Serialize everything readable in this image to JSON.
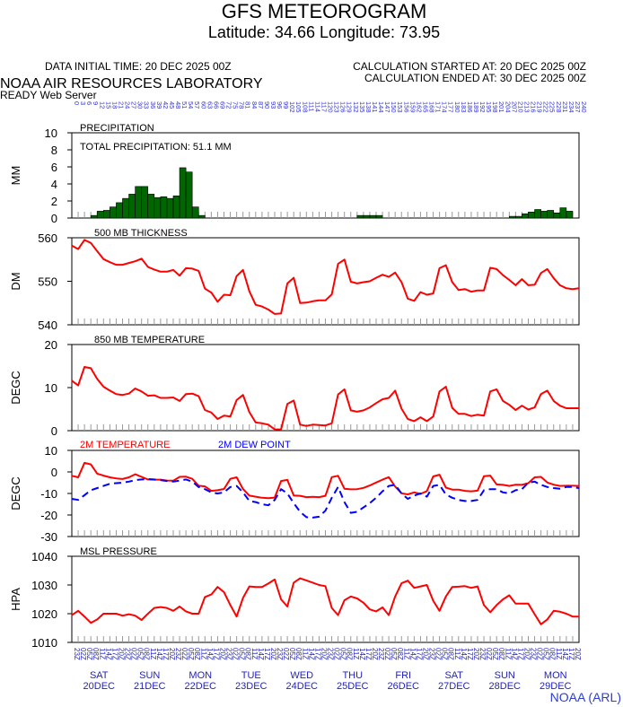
{
  "header": {
    "title": "GFS METEOROGRAM",
    "subtitle": "Latitude: 34.66 Longitude:  73.95",
    "initial_time": "DATA INITIAL TIME: 20 DEC 2025 00Z",
    "calc_started": "CALCULATION STARTED AT: 20 DEC 2025 00Z",
    "calc_ended": "CALCULATION ENDED AT: 30 DEC 2025 00Z",
    "lab": "NOAA AIR RESOURCES LABORATORY",
    "server": "READY Web Server"
  },
  "top_axis": {
    "forecast_hours": [
      0,
      3,
      6,
      9,
      12,
      15,
      18,
      21,
      24,
      27,
      30,
      33,
      36,
      39,
      42,
      45,
      48,
      51,
      54,
      57,
      60,
      63,
      66,
      69,
      72,
      75,
      78,
      81,
      84,
      87,
      90,
      93,
      96,
      99,
      102,
      105,
      108,
      111,
      114,
      117,
      120,
      123,
      126,
      129,
      132,
      135,
      138,
      141,
      144,
      147,
      150,
      153,
      156,
      159,
      162,
      165,
      168,
      171,
      174,
      177,
      180,
      183,
      186,
      189,
      192,
      195,
      198,
      201,
      204,
      207,
      210,
      213,
      216,
      219,
      222,
      225,
      228,
      231,
      234,
      237,
      240
    ],
    "hours_color": "#3333cc"
  },
  "bottom_axis": {
    "time_labels": [
      "23Z",
      "02Z",
      "05Z",
      "08Z",
      "11Z",
      "14Z",
      "17Z",
      "20Z"
    ],
    "days": [
      {
        "dow": "SAT",
        "date": "20DEC"
      },
      {
        "dow": "SUN",
        "date": "21DEC"
      },
      {
        "dow": "MON",
        "date": "22DEC"
      },
      {
        "dow": "TUE",
        "date": "23DEC"
      },
      {
        "dow": "WED",
        "date": "24DEC"
      },
      {
        "dow": "THU",
        "date": "25DEC"
      },
      {
        "dow": "FRI",
        "date": "26DEC"
      },
      {
        "dow": "SAT",
        "date": "27DEC"
      },
      {
        "dow": "SUN",
        "date": "28DEC"
      },
      {
        "dow": "MON",
        "date": "29DEC"
      }
    ],
    "label_color": "#1f1fbf"
  },
  "credit": "NOAA (ARL)",
  "colors": {
    "precip": "#006600",
    "line": "#ff0000",
    "dew": "#0000ff",
    "credit": "#2a3dd6"
  },
  "chart_data": [
    {
      "type": "bar",
      "id": "precipitation",
      "title": "PRECIPITATION",
      "annotation": "TOTAL PRECIPITATION:  51.1 MM",
      "ylabel": "MM",
      "ylim": [
        0,
        10
      ],
      "yticks": [
        0,
        2,
        4,
        6,
        8,
        10
      ],
      "x_hours": [
        0,
        3,
        6,
        9,
        12,
        15,
        18,
        21,
        24,
        27,
        30,
        33,
        36,
        39,
        42,
        45,
        48,
        51,
        54,
        57,
        60,
        63,
        66,
        69,
        72,
        75,
        78,
        81,
        84,
        87,
        90,
        93,
        96,
        99,
        102,
        105,
        108,
        111,
        114,
        117,
        120,
        123,
        126,
        129,
        132,
        135,
        138,
        141,
        144,
        147,
        150,
        153,
        156,
        159,
        162,
        165,
        168,
        171,
        174,
        177,
        180,
        183,
        186,
        189,
        192,
        195,
        198,
        201,
        204,
        207,
        210,
        213,
        216,
        219,
        222,
        225,
        228,
        231,
        234,
        237
      ],
      "values": [
        0,
        0,
        0,
        0.3,
        0.8,
        0.9,
        1.3,
        1.8,
        2.3,
        2.8,
        3.7,
        3.7,
        2.8,
        2.4,
        2.5,
        2.3,
        2.6,
        5.9,
        5.4,
        1.3,
        0.3,
        0,
        0,
        0,
        0,
        0,
        0,
        0,
        0,
        0,
        0,
        0,
        0,
        0,
        0,
        0,
        0,
        0,
        0,
        0,
        0,
        0,
        0,
        0,
        0,
        0.3,
        0.3,
        0.3,
        0.3,
        0,
        0,
        0,
        0,
        0,
        0,
        0,
        0,
        0,
        0,
        0,
        0,
        0,
        0,
        0,
        0,
        0,
        0,
        0,
        0,
        0.2,
        0.2,
        0.5,
        0.7,
        1.0,
        0.8,
        0.9,
        0.6,
        1.2,
        0.8,
        0
      ]
    },
    {
      "type": "line",
      "id": "thickness",
      "title": "500 MB  THICKNESS",
      "ylabel": "DM",
      "ylim": [
        540,
        560
      ],
      "yticks": [
        540,
        550,
        560
      ],
      "x_hours": [
        0,
        3,
        6,
        9,
        12,
        15,
        18,
        21,
        24,
        27,
        30,
        33,
        36,
        39,
        42,
        45,
        48,
        51,
        54,
        57,
        60,
        63,
        66,
        69,
        72,
        75,
        78,
        81,
        84,
        87,
        90,
        93,
        96,
        99,
        102,
        105,
        108,
        111,
        114,
        117,
        120,
        123,
        126,
        129,
        132,
        135,
        138,
        141,
        144,
        147,
        150,
        153,
        156,
        159,
        162,
        165,
        168,
        171,
        174,
        177,
        180,
        183,
        186,
        189,
        192,
        195,
        198,
        201,
        204,
        207,
        210,
        213,
        216,
        219,
        222,
        225,
        228,
        231,
        234,
        237,
        240
      ],
      "values": [
        558.2,
        557.4,
        559.5,
        558.8,
        556.9,
        555.1,
        554.4,
        553.8,
        553.8,
        554.2,
        554.6,
        555.2,
        553.3,
        552.7,
        552.2,
        552.2,
        552.6,
        551.3,
        553.0,
        552.9,
        552.4,
        548.3,
        547.4,
        545.3,
        546.9,
        546.8,
        551.2,
        552.6,
        547.7,
        544.6,
        544.2,
        543.5,
        542.5,
        542.6,
        549.5,
        550.8,
        545.0,
        545.1,
        545.4,
        545.6,
        545.6,
        547.0,
        554.0,
        555.0,
        549.9,
        549.5,
        549.8,
        550.0,
        550.8,
        551.5,
        551.0,
        552.0,
        549.8,
        546.0,
        545.5,
        547.5,
        546.9,
        547.2,
        553.0,
        553.7,
        549.8,
        548.0,
        548.2,
        547.6,
        547.9,
        547.9,
        553.1,
        552.8,
        551.4,
        550.3,
        549.1,
        550.5,
        549.1,
        549.2,
        551.9,
        552.8,
        550.7,
        549.1,
        548.4,
        548.2,
        548.4
      ]
    },
    {
      "type": "line",
      "id": "t850",
      "title": "850 MB  TEMPERATURE",
      "ylabel": "DEGC",
      "ylim": [
        0,
        20
      ],
      "yticks": [
        0,
        10,
        20
      ],
      "x_hours": [
        0,
        3,
        6,
        9,
        12,
        15,
        18,
        21,
        24,
        27,
        30,
        33,
        36,
        39,
        42,
        45,
        48,
        51,
        54,
        57,
        60,
        63,
        66,
        69,
        72,
        75,
        78,
        81,
        84,
        87,
        90,
        93,
        96,
        99,
        102,
        105,
        108,
        111,
        114,
        117,
        120,
        123,
        126,
        129,
        132,
        135,
        138,
        141,
        144,
        147,
        150,
        153,
        156,
        159,
        162,
        165,
        168,
        171,
        174,
        177,
        180,
        183,
        186,
        189,
        192,
        195,
        198,
        201,
        204,
        207,
        210,
        213,
        216,
        219,
        222,
        225,
        228,
        231,
        234,
        237,
        240
      ],
      "values": [
        11.6,
        10.5,
        14.8,
        14.5,
        12.0,
        10.2,
        9.3,
        8.5,
        8.3,
        8.6,
        9.8,
        9.1,
        8.1,
        8.2,
        7.6,
        7.6,
        7.7,
        6.9,
        8.5,
        8.6,
        8.0,
        4.8,
        4.2,
        2.7,
        3.5,
        3.3,
        7.1,
        8.3,
        4.3,
        1.9,
        1.7,
        1.4,
        0.3,
        0.3,
        6.2,
        7.0,
        1.4,
        1.1,
        1.4,
        1.3,
        1.2,
        1.7,
        8.4,
        9.6,
        4.7,
        4.4,
        4.7,
        5.4,
        6.4,
        7.3,
        7.6,
        9.3,
        5.1,
        2.7,
        2.2,
        3.1,
        2.2,
        3.3,
        9.1,
        10.2,
        5.3,
        3.9,
        3.9,
        3.4,
        3.7,
        3.5,
        9.1,
        9.6,
        6.9,
        6.0,
        4.8,
        5.8,
        4.9,
        5.4,
        8.5,
        9.3,
        6.9,
        5.8,
        5.2,
        5.2,
        5.2
      ]
    },
    {
      "type": "line",
      "id": "t2m",
      "ylabel": "DEGC",
      "ylim": [
        -30,
        10
      ],
      "yticks": [
        -30,
        -20,
        -10,
        0,
        10
      ],
      "x_hours": [
        0,
        3,
        6,
        9,
        12,
        15,
        18,
        21,
        24,
        27,
        30,
        33,
        36,
        39,
        42,
        45,
        48,
        51,
        54,
        57,
        60,
        63,
        66,
        69,
        72,
        75,
        78,
        81,
        84,
        87,
        90,
        93,
        96,
        99,
        102,
        105,
        108,
        111,
        114,
        117,
        120,
        123,
        126,
        129,
        132,
        135,
        138,
        141,
        144,
        147,
        150,
        153,
        156,
        159,
        162,
        165,
        168,
        171,
        174,
        177,
        180,
        183,
        186,
        189,
        192,
        195,
        198,
        201,
        204,
        207,
        210,
        213,
        216,
        219,
        222,
        225,
        228,
        231,
        234,
        237,
        240
      ],
      "series": [
        {
          "name": "2M TEMPERATURE",
          "color": "#ff0000",
          "values": [
            -1.8,
            -2.5,
            4.2,
            3.5,
            -0.8,
            -1.7,
            -2.5,
            -3.0,
            -3.3,
            -2.5,
            -1.1,
            -2.3,
            -3.5,
            -3.6,
            -3.6,
            -4.0,
            -4.1,
            -2.3,
            -2.2,
            -3.2,
            -6.4,
            -6.7,
            -8.8,
            -8.5,
            -7.9,
            -3.2,
            -2.5,
            -7.9,
            -11.0,
            -11.5,
            -12.0,
            -12.2,
            -11.9,
            -4.2,
            -3.7,
            -10.9,
            -11.1,
            -11.7,
            -11.6,
            -11.7,
            -11.1,
            -2.4,
            -1.8,
            -7.8,
            -8.1,
            -8.0,
            -7.4,
            -6.3,
            -4.9,
            -3.6,
            -2.4,
            -6.8,
            -9.9,
            -10.4,
            -9.5,
            -10.2,
            -8.9,
            -2.1,
            -1.3,
            -7.3,
            -8.2,
            -8.2,
            -8.8,
            -9.0,
            -8.7,
            -2.0,
            -1.7,
            -5.8,
            -6.0,
            -6.5,
            -5.9,
            -6.0,
            -5.2,
            -2.5,
            -2.3,
            -4.9,
            -5.9,
            -6.5,
            -6.4,
            -6.4,
            -6.5
          ]
        },
        {
          "name": "2M  DEW POINT",
          "color": "#0000ff",
          "dashed": true,
          "values": [
            -12.5,
            -13.0,
            -10.8,
            -8.5,
            -7.5,
            -6.5,
            -5.5,
            -5.2,
            -5.0,
            -4.5,
            -3.8,
            -3.5,
            -3.3,
            -3.5,
            -3.8,
            -4.2,
            -4.5,
            -4.0,
            -3.5,
            -4.5,
            -7.0,
            -8.0,
            -9.5,
            -10.0,
            -9.5,
            -7.0,
            -6.5,
            -9.5,
            -13.5,
            -14.0,
            -15.0,
            -15.5,
            -13.0,
            -8.0,
            -10.0,
            -14.5,
            -18.5,
            -21.0,
            -21.2,
            -20.8,
            -18.0,
            -12.0,
            -7.0,
            -14.0,
            -19.0,
            -18.5,
            -16.5,
            -14.5,
            -12.0,
            -9.0,
            -6.5,
            -6.0,
            -10.0,
            -12.5,
            -11.0,
            -10.0,
            -11.5,
            -6.5,
            -6.0,
            -10.5,
            -12.0,
            -13.0,
            -13.5,
            -13.5,
            -13.0,
            -8.5,
            -8.0,
            -8.0,
            -9.5,
            -10.0,
            -8.5,
            -8.0,
            -5.0,
            -4.5,
            -6.0,
            -7.0,
            -7.5,
            -7.8,
            -7.0,
            -7.0,
            -7.5
          ]
        }
      ]
    },
    {
      "type": "line",
      "id": "mslp",
      "title": "MSL PRESSURE",
      "ylabel": "HPA",
      "ylim": [
        1010,
        1040
      ],
      "yticks": [
        1010,
        1020,
        1030,
        1040
      ],
      "x_hours": [
        0,
        3,
        6,
        9,
        12,
        15,
        18,
        21,
        24,
        27,
        30,
        33,
        36,
        39,
        42,
        45,
        48,
        51,
        54,
        57,
        60,
        63,
        66,
        69,
        72,
        75,
        78,
        81,
        84,
        87,
        90,
        93,
        96,
        99,
        102,
        105,
        108,
        111,
        114,
        117,
        120,
        123,
        126,
        129,
        132,
        135,
        138,
        141,
        144,
        147,
        150,
        153,
        156,
        159,
        162,
        165,
        168,
        171,
        174,
        177,
        180,
        183,
        186,
        189,
        192,
        195,
        198,
        201,
        204,
        207,
        210,
        213,
        216,
        219,
        222,
        225,
        228,
        231,
        234,
        237,
        240
      ],
      "values": [
        1019.5,
        1021.0,
        1019.0,
        1016.8,
        1018.0,
        1020.0,
        1020.0,
        1020.0,
        1019.3,
        1019.8,
        1019.3,
        1017.8,
        1020.0,
        1022.0,
        1022.3,
        1022.0,
        1021.0,
        1022.5,
        1020.8,
        1020.0,
        1020.0,
        1025.8,
        1026.7,
        1029.3,
        1027.5,
        1023.0,
        1019.0,
        1025.5,
        1029.5,
        1029.3,
        1029.3,
        1030.5,
        1031.9,
        1025.0,
        1022.5,
        1030.8,
        1032.3,
        1031.6,
        1030.8,
        1030.0,
        1029.6,
        1022.0,
        1019.5,
        1024.7,
        1026.0,
        1025.3,
        1023.8,
        1021.5,
        1020.8,
        1022.2,
        1019.5,
        1026.0,
        1030.6,
        1031.5,
        1029.0,
        1029.5,
        1030.0,
        1024.5,
        1021.0,
        1026.0,
        1029.3,
        1029.4,
        1029.6,
        1029.0,
        1029.5,
        1023.0,
        1020.5,
        1023.0,
        1025.0,
        1026.4,
        1023.5,
        1023.5,
        1023.5,
        1019.8,
        1016.3,
        1018.0,
        1021.0,
        1020.7,
        1020.0,
        1019.0,
        1019.0
      ]
    }
  ]
}
